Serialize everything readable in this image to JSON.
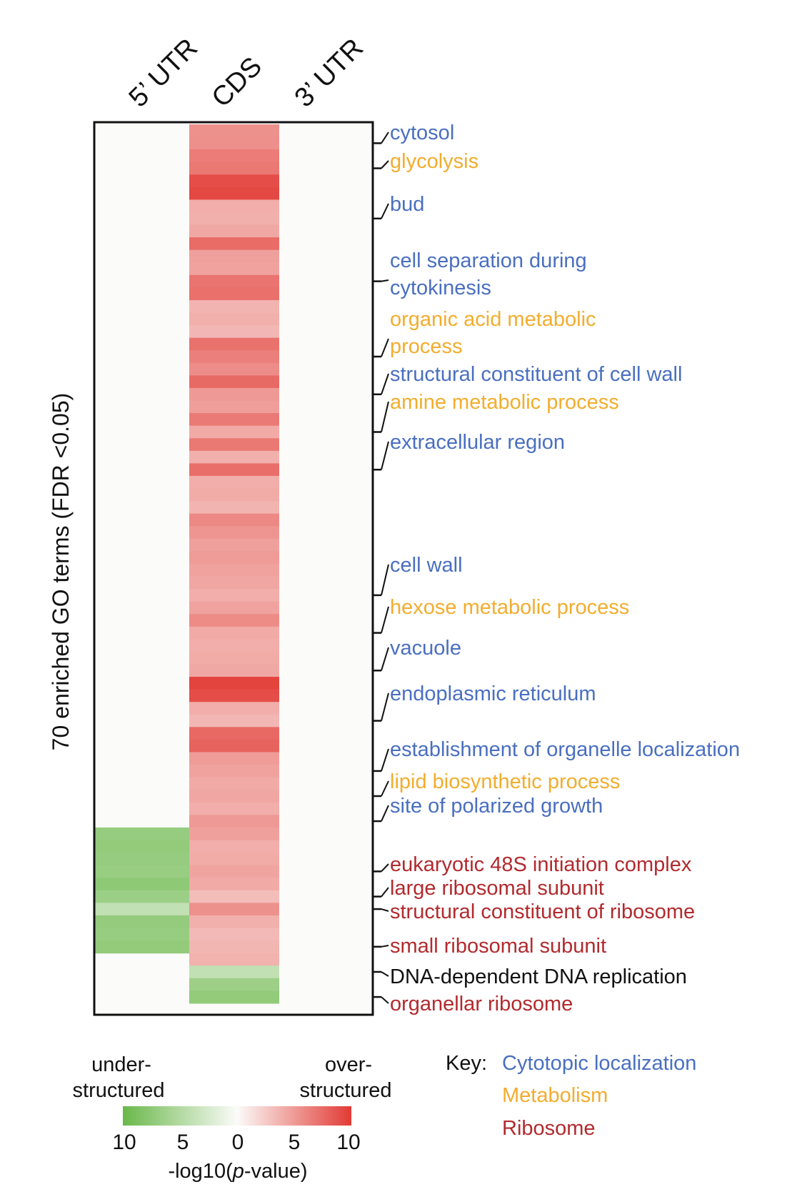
{
  "chart_data": {
    "type": "heatmap",
    "columns": [
      "5’ UTR",
      "CDS",
      "3’ UTR"
    ],
    "ylabel": "70 enriched GO terms (FDR <0.05)",
    "n_rows": 70,
    "cds_over_values": [
      5.5,
      5.6,
      6.6,
      6.8,
      9.0,
      9.3,
      4.0,
      3.9,
      4.3,
      7.4,
      4.7,
      4.6,
      7.0,
      7.2,
      3.7,
      3.9,
      3.5,
      7.1,
      6.4,
      5.7,
      7.5,
      5.1,
      4.8,
      6.7,
      4.2,
      6.8,
      3.9,
      7.3,
      4.0,
      4.1,
      3.7,
      5.9,
      5.3,
      4.7,
      5.0,
      4.6,
      4.4,
      4.0,
      4.6,
      5.8,
      4.2,
      4.0,
      4.1,
      4.3,
      9.5,
      9.0,
      4.0,
      3.5,
      7.6,
      7.9,
      4.9,
      4.6,
      4.2,
      4.4,
      4.0,
      5.1,
      4.7,
      4.0,
      4.1,
      4.5,
      4.2,
      3.2,
      5.5,
      3.9,
      3.4,
      3.6,
      3.8,
      4.1,
      4.0,
      3.7
    ],
    "utr5_under_values": [
      7.0,
      7.2,
      7.0,
      6.8,
      7.5,
      6.6,
      4.0,
      7.1,
      6.9,
      7.2
    ],
    "cds_under_values": [
      4.0,
      6.5,
      7.2
    ],
    "under_rows_start": 56,
    "cds_under_rows_start": 67,
    "annotations": [
      {
        "label": "cytosol",
        "category": "Cytotopic localization",
        "row": 1
      },
      {
        "label": "glycolysis",
        "category": "Metabolism",
        "row": 3
      },
      {
        "label": "bud",
        "category": "Cytotopic localization",
        "row": 7
      },
      {
        "label": "cell separation during",
        "label2": "cytokinesis",
        "category": "Cytotopic localization",
        "row": 12
      },
      {
        "label": "organic acid metabolic",
        "label2": "process",
        "category": "Metabolism",
        "row": 18
      },
      {
        "label": "structural constituent of cell wall",
        "category": "Cytotopic localization",
        "row": 21
      },
      {
        "label": "amine metabolic process",
        "category": "Metabolism",
        "row": 24
      },
      {
        "label": "extracellular region",
        "category": "Cytotopic localization",
        "row": 27
      },
      {
        "label": "cell wall",
        "category": "Cytotopic localization",
        "row": 37
      },
      {
        "label": "hexose metabolic process",
        "category": "Metabolism",
        "row": 40
      },
      {
        "label": "vacuole",
        "category": "Cytotopic localization",
        "row": 43
      },
      {
        "label": "endoplasmic reticulum",
        "category": "Cytotopic localization",
        "row": 47
      },
      {
        "label": "establishment of organelle localization",
        "category": "Cytotopic localization",
        "row": 51
      },
      {
        "label": "lipid biosynthetic process",
        "category": "Metabolism",
        "row": 53
      },
      {
        "label": "site of polarized growth",
        "category": "Cytotopic localization",
        "row": 55
      },
      {
        "label": "eukaryotic 48S initiation complex",
        "category": "Ribosome",
        "row": 59
      },
      {
        "label": "large ribosomal subunit",
        "category": "Ribosome",
        "row": 61
      },
      {
        "label": "structural constituent of ribosome",
        "category": "Ribosome",
        "row": 62
      },
      {
        "label": "small ribosomal subunit",
        "category": "Ribosome",
        "row": 65
      },
      {
        "label": "DNA-dependent DNA replication",
        "category": "none",
        "row": 67
      },
      {
        "label": "organellar ribosome",
        "category": "Ribosome",
        "row": 69
      }
    ],
    "colorbar": {
      "left_label_line1": "under-",
      "left_label_line2": "structured",
      "right_label_line1": "over-",
      "right_label_line2": "structured",
      "ticks": [
        "10",
        "5",
        "0",
        "5",
        "10"
      ],
      "title_prefix": "-log10(",
      "title_italic": "p",
      "title_suffix": "-value)",
      "under_color": "#6ab84a",
      "neutral_color": "#fbfbf9",
      "over_color": "#e23a34",
      "max": 10
    },
    "key": {
      "title": "Key:",
      "items": [
        {
          "label": "Cytotopic localization",
          "color": "#4a6fc0"
        },
        {
          "label": "Metabolism",
          "color": "#f2ad2e"
        },
        {
          "label": "Ribosome",
          "color": "#b22a2e"
        }
      ]
    },
    "category_colors": {
      "Cytotopic localization": "#4a6fc0",
      "Metabolism": "#f2ad2e",
      "Ribosome": "#b22a2e",
      "none": "#111111"
    }
  }
}
